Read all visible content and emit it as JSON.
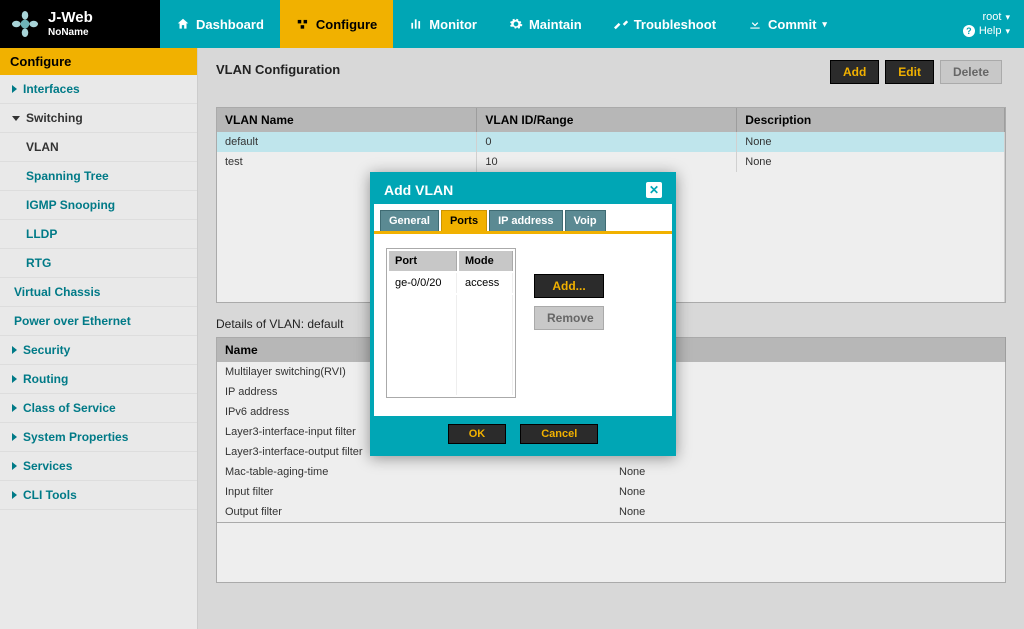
{
  "brand": {
    "app": "J-Web",
    "sub": "NoName"
  },
  "nav": {
    "dashboard": "Dashboard",
    "configure": "Configure",
    "monitor": "Monitor",
    "maintain": "Maintain",
    "troubleshoot": "Troubleshoot",
    "commit": "Commit"
  },
  "topright": {
    "user": "root",
    "help": "Help"
  },
  "sidebar": {
    "heading": "Configure",
    "interfaces": "Interfaces",
    "switching": "Switching",
    "vlan": "VLAN",
    "spanning": "Spanning Tree",
    "igmp": "IGMP Snooping",
    "lldp": "LLDP",
    "rtg": "RTG",
    "vchassis": "Virtual Chassis",
    "poe": "Power over Ethernet",
    "security": "Security",
    "routing": "Routing",
    "cos": "Class of Service",
    "sysprops": "System Properties",
    "services": "Services",
    "cli": "CLI Tools"
  },
  "page": {
    "title": "VLAN Configuration",
    "add": "Add",
    "edit": "Edit",
    "delete": "Delete",
    "cols": {
      "name": "VLAN Name",
      "id": "VLAN ID/Range",
      "desc": "Description"
    },
    "rows": [
      {
        "name": "default",
        "id": "0",
        "desc": "None"
      },
      {
        "name": "test",
        "id": "10",
        "desc": "None"
      }
    ],
    "details_label": "Details of VLAN: default",
    "details_name_h": "Name",
    "details_val_h": "",
    "details": [
      {
        "k": "Multilayer switching(RVI)",
        "v": ""
      },
      {
        "k": "IP address",
        "v": ""
      },
      {
        "k": "IPv6 address",
        "v": ""
      },
      {
        "k": "Layer3-interface-input filter",
        "v": ""
      },
      {
        "k": "Layer3-interface-output filter",
        "v": "None"
      },
      {
        "k": "Mac-table-aging-time",
        "v": "None"
      },
      {
        "k": "Input filter",
        "v": "None"
      },
      {
        "k": "Output filter",
        "v": "None"
      }
    ]
  },
  "modal": {
    "title": "Add VLAN",
    "tabs": {
      "general": "General",
      "ports": "Ports",
      "ip": "IP address",
      "voip": "Voip"
    },
    "portcols": {
      "port": "Port",
      "mode": "Mode"
    },
    "portrow": {
      "port": "ge-0/0/20",
      "mode": "access"
    },
    "add": "Add...",
    "remove": "Remove",
    "ok": "OK",
    "cancel": "Cancel"
  },
  "colors": {
    "teal": "#00a6b5",
    "amber": "#f1b100",
    "dark": "#2b2b2b"
  }
}
